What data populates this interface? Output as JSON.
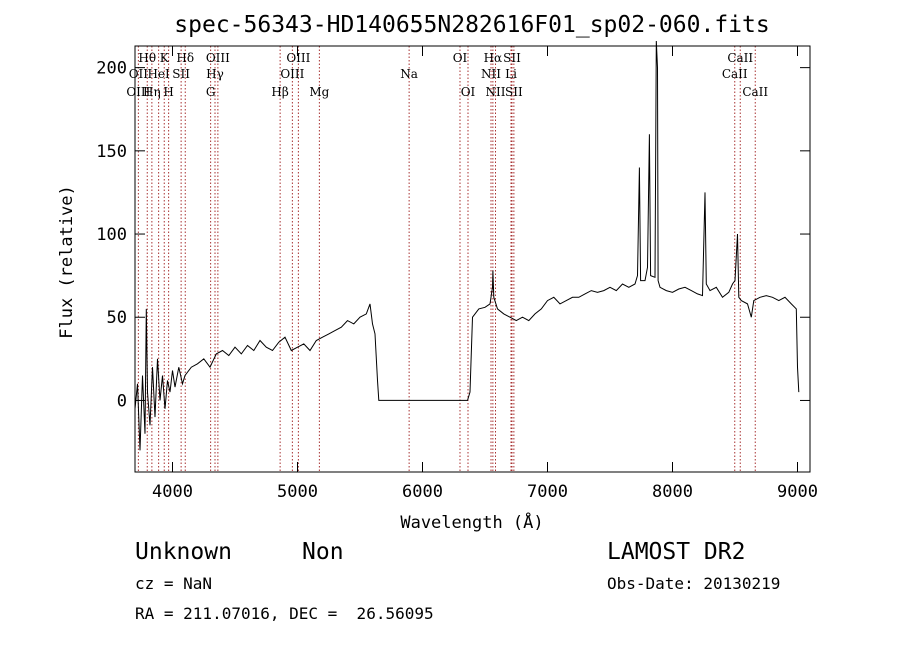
{
  "chart_data": {
    "type": "line",
    "title": "spec-56343-HD140655N282616F01_sp02-060.fits",
    "xlabel": "Wavelength (Å)",
    "ylabel": "Flux (relative)",
    "xlim": [
      3700,
      9100
    ],
    "ylim": [
      -43,
      213
    ],
    "xticks": [
      4000,
      5000,
      6000,
      7000,
      8000,
      9000
    ],
    "yticks": [
      0,
      50,
      100,
      150,
      200
    ],
    "grid": false,
    "series": [
      {
        "values": [
          [
            3700,
            -5
          ],
          [
            3720,
            10
          ],
          [
            3740,
            -30
          ],
          [
            3760,
            15
          ],
          [
            3780,
            -20
          ],
          [
            3790,
            55
          ],
          [
            3800,
            5
          ],
          [
            3820,
            -15
          ],
          [
            3840,
            20
          ],
          [
            3860,
            -10
          ],
          [
            3880,
            25
          ],
          [
            3900,
            0
          ],
          [
            3920,
            15
          ],
          [
            3940,
            -5
          ],
          [
            3960,
            12
          ],
          [
            3980,
            5
          ],
          [
            4000,
            18
          ],
          [
            4020,
            8
          ],
          [
            4050,
            20
          ],
          [
            4080,
            10
          ],
          [
            4100,
            15
          ],
          [
            4150,
            20
          ],
          [
            4200,
            22
          ],
          [
            4250,
            25
          ],
          [
            4300,
            20
          ],
          [
            4350,
            28
          ],
          [
            4400,
            30
          ],
          [
            4450,
            27
          ],
          [
            4500,
            32
          ],
          [
            4550,
            28
          ],
          [
            4600,
            33
          ],
          [
            4650,
            30
          ],
          [
            4700,
            36
          ],
          [
            4750,
            32
          ],
          [
            4800,
            30
          ],
          [
            4850,
            35
          ],
          [
            4900,
            38
          ],
          [
            4950,
            30
          ],
          [
            5000,
            32
          ],
          [
            5050,
            34
          ],
          [
            5100,
            30
          ],
          [
            5150,
            36
          ],
          [
            5200,
            38
          ],
          [
            5250,
            40
          ],
          [
            5300,
            42
          ],
          [
            5350,
            44
          ],
          [
            5400,
            48
          ],
          [
            5450,
            46
          ],
          [
            5500,
            50
          ],
          [
            5550,
            52
          ],
          [
            5580,
            58
          ],
          [
            5600,
            46
          ],
          [
            5620,
            40
          ],
          [
            5640,
            12
          ],
          [
            5650,
            0
          ],
          [
            5700,
            0
          ],
          [
            6000,
            0
          ],
          [
            6300,
            0
          ],
          [
            6360,
            0
          ],
          [
            6380,
            5
          ],
          [
            6400,
            50
          ],
          [
            6420,
            52
          ],
          [
            6450,
            55
          ],
          [
            6500,
            56
          ],
          [
            6540,
            58
          ],
          [
            6560,
            68
          ],
          [
            6563,
            78
          ],
          [
            6570,
            62
          ],
          [
            6600,
            55
          ],
          [
            6650,
            52
          ],
          [
            6700,
            50
          ],
          [
            6750,
            48
          ],
          [
            6800,
            50
          ],
          [
            6850,
            48
          ],
          [
            6900,
            52
          ],
          [
            6950,
            55
          ],
          [
            7000,
            60
          ],
          [
            7050,
            62
          ],
          [
            7100,
            58
          ],
          [
            7150,
            60
          ],
          [
            7200,
            62
          ],
          [
            7250,
            62
          ],
          [
            7300,
            64
          ],
          [
            7350,
            66
          ],
          [
            7400,
            65
          ],
          [
            7450,
            66
          ],
          [
            7500,
            68
          ],
          [
            7550,
            66
          ],
          [
            7600,
            70
          ],
          [
            7650,
            68
          ],
          [
            7700,
            70
          ],
          [
            7720,
            75
          ],
          [
            7735,
            140
          ],
          [
            7745,
            72
          ],
          [
            7780,
            72
          ],
          [
            7800,
            80
          ],
          [
            7815,
            160
          ],
          [
            7825,
            75
          ],
          [
            7860,
            74
          ],
          [
            7870,
            220
          ],
          [
            7880,
            200
          ],
          [
            7885,
            72
          ],
          [
            7900,
            68
          ],
          [
            7950,
            66
          ],
          [
            8000,
            65
          ],
          [
            8050,
            67
          ],
          [
            8100,
            68
          ],
          [
            8150,
            66
          ],
          [
            8200,
            64
          ],
          [
            8240,
            63
          ],
          [
            8260,
            125
          ],
          [
            8270,
            70
          ],
          [
            8300,
            66
          ],
          [
            8350,
            68
          ],
          [
            8400,
            62
          ],
          [
            8450,
            65
          ],
          [
            8480,
            70
          ],
          [
            8500,
            72
          ],
          [
            8520,
            100
          ],
          [
            8530,
            62
          ],
          [
            8550,
            60
          ],
          [
            8600,
            58
          ],
          [
            8630,
            50
          ],
          [
            8650,
            60
          ],
          [
            8700,
            62
          ],
          [
            8750,
            63
          ],
          [
            8800,
            62
          ],
          [
            8850,
            60
          ],
          [
            8900,
            62
          ],
          [
            8950,
            58
          ],
          [
            8990,
            55
          ],
          [
            9000,
            20
          ],
          [
            9010,
            5
          ]
        ]
      }
    ],
    "line_labels": [
      {
        "label": "Hθ",
        "wave": 3798,
        "row": 1
      },
      {
        "label": "OII",
        "wave": 3727,
        "row": 2
      },
      {
        "label": "OIII",
        "wave": 3727,
        "row": 3
      },
      {
        "label": "K",
        "wave": 3934,
        "row": 1
      },
      {
        "label": "HeI",
        "wave": 3889,
        "row": 2
      },
      {
        "label": "Hη",
        "wave": 3835,
        "row": 3
      },
      {
        "label": "H",
        "wave": 3969,
        "row": 3
      },
      {
        "label": "Hδ",
        "wave": 4102,
        "row": 1
      },
      {
        "label": "SII",
        "wave": 4069,
        "row": 2
      },
      {
        "label": "OIII",
        "wave": 4363,
        "row": 1
      },
      {
        "label": "Hγ",
        "wave": 4340,
        "row": 2
      },
      {
        "label": "G",
        "wave": 4305,
        "row": 3
      },
      {
        "label": "OIII",
        "wave": 5007,
        "row": 1
      },
      {
        "label": "OIII",
        "wave": 4959,
        "row": 2
      },
      {
        "label": "Hβ",
        "wave": 4861,
        "row": 3
      },
      {
        "label": "Mg",
        "wave": 5175,
        "row": 3
      },
      {
        "label": "Na",
        "wave": 5893,
        "row": 2
      },
      {
        "label": "OI",
        "wave": 6300,
        "row": 1
      },
      {
        "label": "OI",
        "wave": 6364,
        "row": 3
      },
      {
        "label": "Hα",
        "wave": 6563,
        "row": 1
      },
      {
        "label": "SII",
        "wave": 6716,
        "row": 1
      },
      {
        "label": "NII",
        "wave": 6548,
        "row": 2
      },
      {
        "label": "Li",
        "wave": 6708,
        "row": 2
      },
      {
        "label": "NII",
        "wave": 6584,
        "row": 3
      },
      {
        "label": "SII",
        "wave": 6731,
        "row": 3
      },
      {
        "label": "CaII",
        "wave": 8542,
        "row": 1
      },
      {
        "label": "CaII",
        "wave": 8498,
        "row": 2
      },
      {
        "label": "CaII",
        "wave": 8662,
        "row": 3
      }
    ],
    "line_marker_color": "#a83232"
  },
  "info": {
    "object_class": "Unknown",
    "subclass": "Non",
    "survey": "LAMOST DR2",
    "redshift": "cz = NaN",
    "obs_date": "Obs-Date: 20130219",
    "coords": "RA = 211.07016, DEC =  26.56095"
  }
}
